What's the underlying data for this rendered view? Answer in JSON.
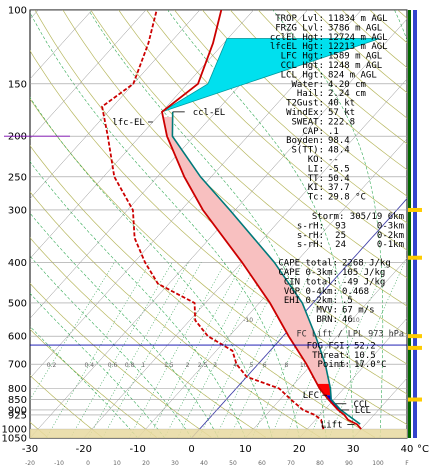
{
  "chart_data": {
    "type": "line",
    "title": "",
    "xlabel": "°C",
    "ylabel": "",
    "xlim": [
      -30,
      40
    ],
    "ylim": [
      1050,
      100
    ],
    "y_scale": "log",
    "pressure_ticks": [
      "100",
      "150",
      "200",
      "250",
      "300",
      "400",
      "500",
      "600",
      "700",
      "800",
      "850",
      "900",
      "925",
      "1000",
      "1050"
    ],
    "temp_ticks": [
      "-30",
      "-20",
      "-10",
      "0",
      "10",
      "20",
      "30",
      "40"
    ],
    "bottom_scale": [
      "-20",
      "-10",
      "0",
      "10",
      "20",
      "30",
      "40",
      "50",
      "60",
      "70",
      "80",
      "90",
      "100",
      "F"
    ],
    "mixing_ratio_labels": [
      "0.2",
      "0.4",
      "0.6",
      "0.8",
      "1",
      "1.5",
      "2",
      "2.5",
      "3",
      "4",
      "5",
      "6",
      "8",
      "10",
      "12",
      "16",
      "20"
    ],
    "adiabat_labels": [
      "-10",
      "0",
      "10",
      "20",
      "30",
      "40",
      "50"
    ],
    "parameters": [
      {
        "label": "TROP Lvl:",
        "value": "11834 m AGL"
      },
      {
        "label": "FRZG Lvl:",
        "value": "3786 m AGL"
      },
      {
        "label": "cclEL Hgt:",
        "value": "12724 m AGL"
      },
      {
        "label": "lfcEL Hgt:",
        "value": "12213 m AGL"
      },
      {
        "label": "LFC Hgt:",
        "value": "1589 m AGL"
      },
      {
        "label": "CCL Hgt:",
        "value": "1248 m AGL"
      },
      {
        "label": "LCL Hgt:",
        "value": "824 m AGL"
      },
      {
        "label": "Water:",
        "value": "4.20 cm"
      },
      {
        "label": "Hail:",
        "value": "2.24 cm"
      },
      {
        "label": "T2Gust:",
        "value": "40 kt"
      },
      {
        "label": "WindEx:",
        "value": "57 kt"
      },
      {
        "label": "SWEAT:",
        "value": "222.8"
      },
      {
        "label": "CAP:",
        "value": ".1"
      },
      {
        "label": "Boyden:",
        "value": "98.4"
      },
      {
        "label": "S(TT):",
        "value": "48.4"
      },
      {
        "label": "KO:",
        "value": "--"
      },
      {
        "label": "LI:",
        "value": "-5.5"
      },
      {
        "label": "TT:",
        "value": "50.4"
      },
      {
        "label": "KI:",
        "value": "37.7"
      },
      {
        "label": "Tc:",
        "value": "29.8 °C"
      }
    ],
    "storm": {
      "title": "Storm: 305/19  6km",
      "rows": [
        {
          "label": "s-rH:",
          "value": "93",
          "layer": "0-3km"
        },
        {
          "label": "s-rH:",
          "value": "25",
          "layer": "0-2km"
        },
        {
          "label": "s-rH:",
          "value": "24",
          "layer": "0-1km"
        }
      ]
    },
    "cape": [
      {
        "label": "CAPE total:",
        "value": "2268 J/kg"
      },
      {
        "label": "CAPE 0-3km:",
        "value": "105 J/kg"
      },
      {
        "label": "CIN total:",
        "value": "-49 J/kg"
      },
      {
        "label": "VGP 0-4km:",
        "value": "0.468"
      },
      {
        "label": "EHI 0-2km:",
        "value": ".5"
      },
      {
        "label": "MVV:",
        "value": "67 m/s"
      },
      {
        "label": "BRN:",
        "value": "46"
      }
    ],
    "fc_header": "FC Lift / LPL 973 hPa",
    "fog": [
      {
        "label": "FOG FSI:",
        "value": "52.2"
      },
      {
        "label": "Threat:",
        "value": "10.5"
      },
      {
        "label": "Point:",
        "value": "17.0°C"
      }
    ],
    "level_labels": {
      "ccl_el": "ccl-EL",
      "lfc_el": "lfc-EL",
      "lfc": "LFC",
      "ccl": "CCL",
      "lcl": "LCL",
      "lift": "Lift"
    },
    "series": [
      {
        "type": "environment_temperature",
        "color": "#cc0000",
        "points": [
          [
            1000,
            30
          ],
          [
            975,
            28.5
          ],
          [
            950,
            26
          ],
          [
            925,
            24.5
          ],
          [
            900,
            22.5
          ],
          [
            850,
            19
          ],
          [
            800,
            15.5
          ],
          [
            700,
            9
          ],
          [
            600,
            1
          ],
          [
            500,
            -8
          ],
          [
            400,
            -20
          ],
          [
            300,
            -36
          ],
          [
            250,
            -45
          ],
          [
            200,
            -55
          ],
          [
            175,
            -60
          ],
          [
            150,
            -58
          ],
          [
            120,
            -62
          ],
          [
            100,
            -66
          ]
        ]
      },
      {
        "type": "environment_dewpoint",
        "color": "#cc0000",
        "dashed": true,
        "points": [
          [
            1000,
            23
          ],
          [
            975,
            22
          ],
          [
            950,
            21
          ],
          [
            925,
            19
          ],
          [
            900,
            16
          ],
          [
            850,
            12
          ],
          [
            800,
            8
          ],
          [
            750,
            0
          ],
          [
            700,
            -4
          ],
          [
            650,
            -7
          ],
          [
            600,
            -14
          ],
          [
            550,
            -19
          ],
          [
            500,
            -22
          ],
          [
            450,
            -32
          ],
          [
            400,
            -38
          ],
          [
            350,
            -44
          ],
          [
            300,
            -49
          ],
          [
            250,
            -58
          ],
          [
            200,
            -66
          ],
          [
            170,
            -72
          ],
          [
            150,
            -70
          ],
          [
            120,
            -74
          ],
          [
            100,
            -78
          ]
        ]
      },
      {
        "type": "parcel_ascent",
        "color": "#007a7a",
        "points": [
          [
            973,
            29
          ],
          [
            900,
            23
          ],
          [
            850,
            19.5
          ],
          [
            800,
            17.5
          ],
          [
            700,
            12.5
          ],
          [
            600,
            6
          ],
          [
            500,
            -2
          ],
          [
            400,
            -14
          ],
          [
            300,
            -31
          ],
          [
            250,
            -42
          ],
          [
            200,
            -54
          ],
          [
            175,
            -58
          ]
        ]
      }
    ]
  }
}
